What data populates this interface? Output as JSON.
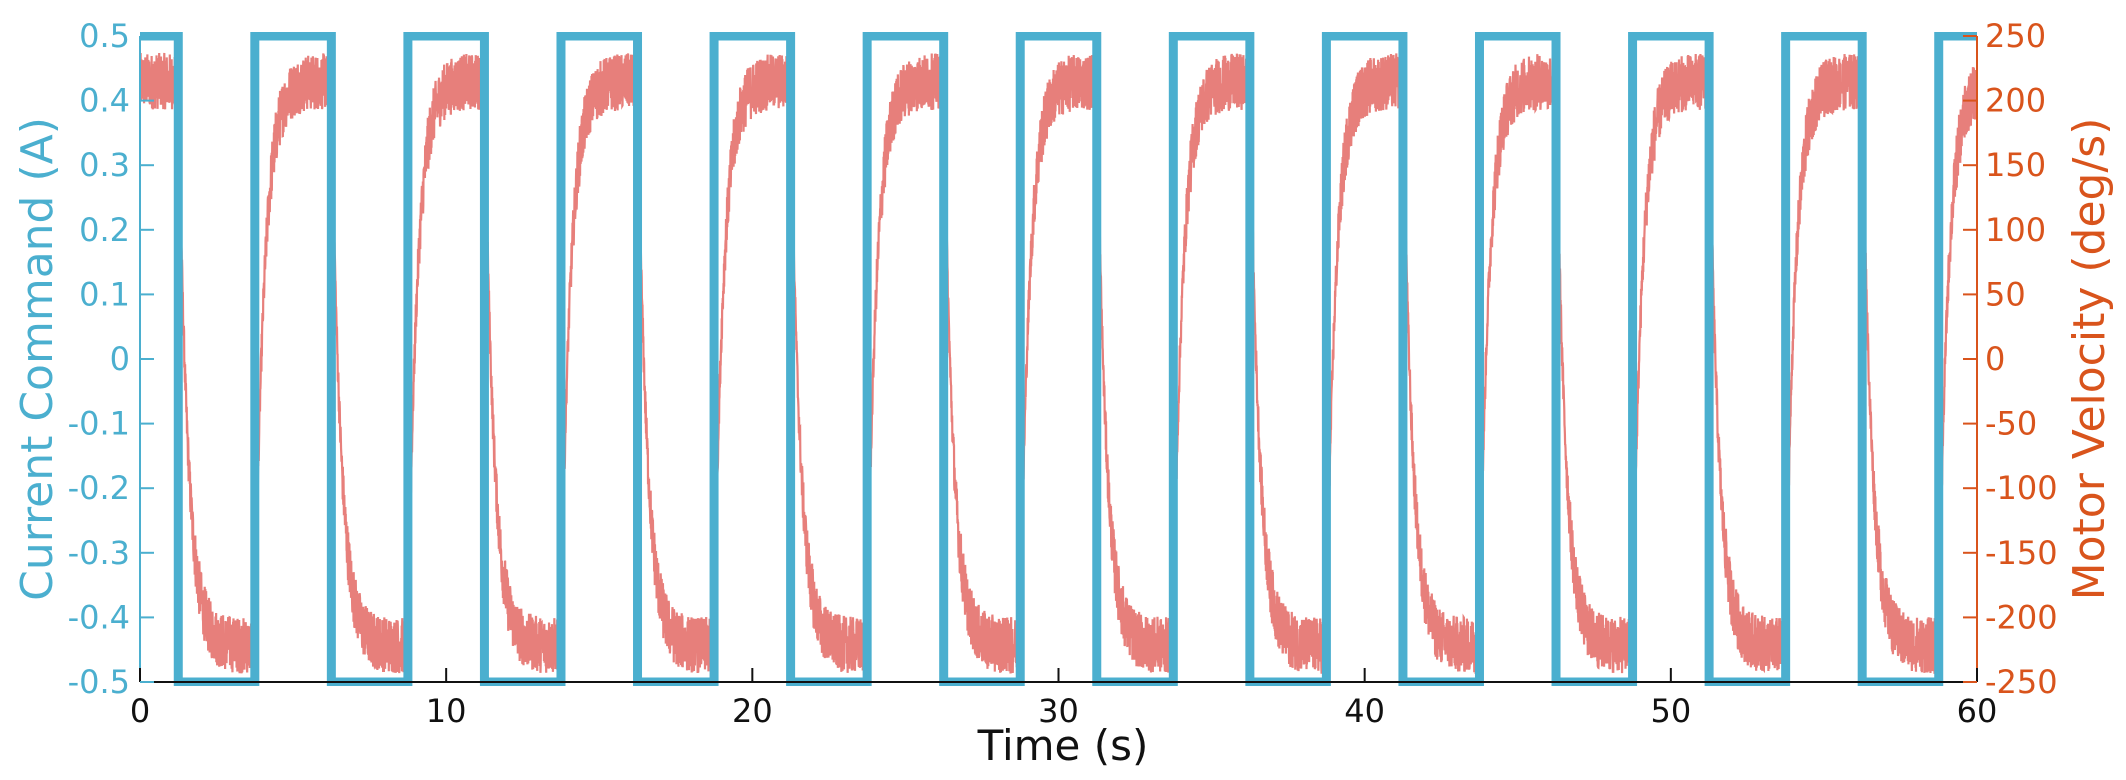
{
  "chart_data": {
    "type": "line",
    "title": "",
    "xlabel": "Time (s)",
    "ylabel_left": "Current Command (A)",
    "ylabel_right": "Motor Velocity (deg/s)",
    "xlim": [
      0,
      60
    ],
    "ylim_left": [
      -0.5,
      0.5
    ],
    "ylim_right": [
      -250,
      250
    ],
    "grid": false,
    "x_ticks": [
      "0",
      "10",
      "20",
      "30",
      "40",
      "50",
      "60"
    ],
    "y_left_ticks": [
      "-0.5",
      "-0.4",
      "-0.3",
      "-0.2",
      "-0.1",
      "0",
      "0.1",
      "0.2",
      "0.3",
      "0.4",
      "0.5"
    ],
    "y_right_ticks": [
      "-250",
      "-200",
      "-150",
      "-100",
      "-50",
      "0",
      "50",
      "100",
      "150",
      "200",
      "250"
    ],
    "colors": {
      "current": "#4bafcf",
      "velocity": "#e77f7b",
      "left_axis": "#4bafcf",
      "right_axis": "#d9541c",
      "x_axis": "#111111"
    },
    "series": [
      {
        "axis": "left",
        "style": "square-wave",
        "high": 0.5,
        "low": -0.5,
        "x_transitions": [
          1.25,
          3.75,
          6.25,
          8.75,
          11.25,
          13.75,
          16.25,
          18.75,
          21.25,
          23.75,
          26.25,
          28.75,
          31.25,
          33.75,
          36.25,
          38.75,
          41.25,
          43.75,
          46.25,
          48.75,
          51.25,
          53.75,
          56.25,
          58.75
        ],
        "initial_level": 0.5
      },
      {
        "axis": "right",
        "style": "noisy-step-response",
        "high_mean": 215,
        "low_mean": -222,
        "noise_amplitude": 22,
        "time_constant_s": 0.3
      }
    ]
  }
}
